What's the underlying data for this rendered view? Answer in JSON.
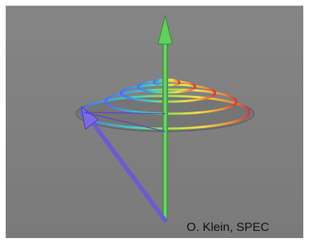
{
  "credit": "O. Klein, SPEC"
}
